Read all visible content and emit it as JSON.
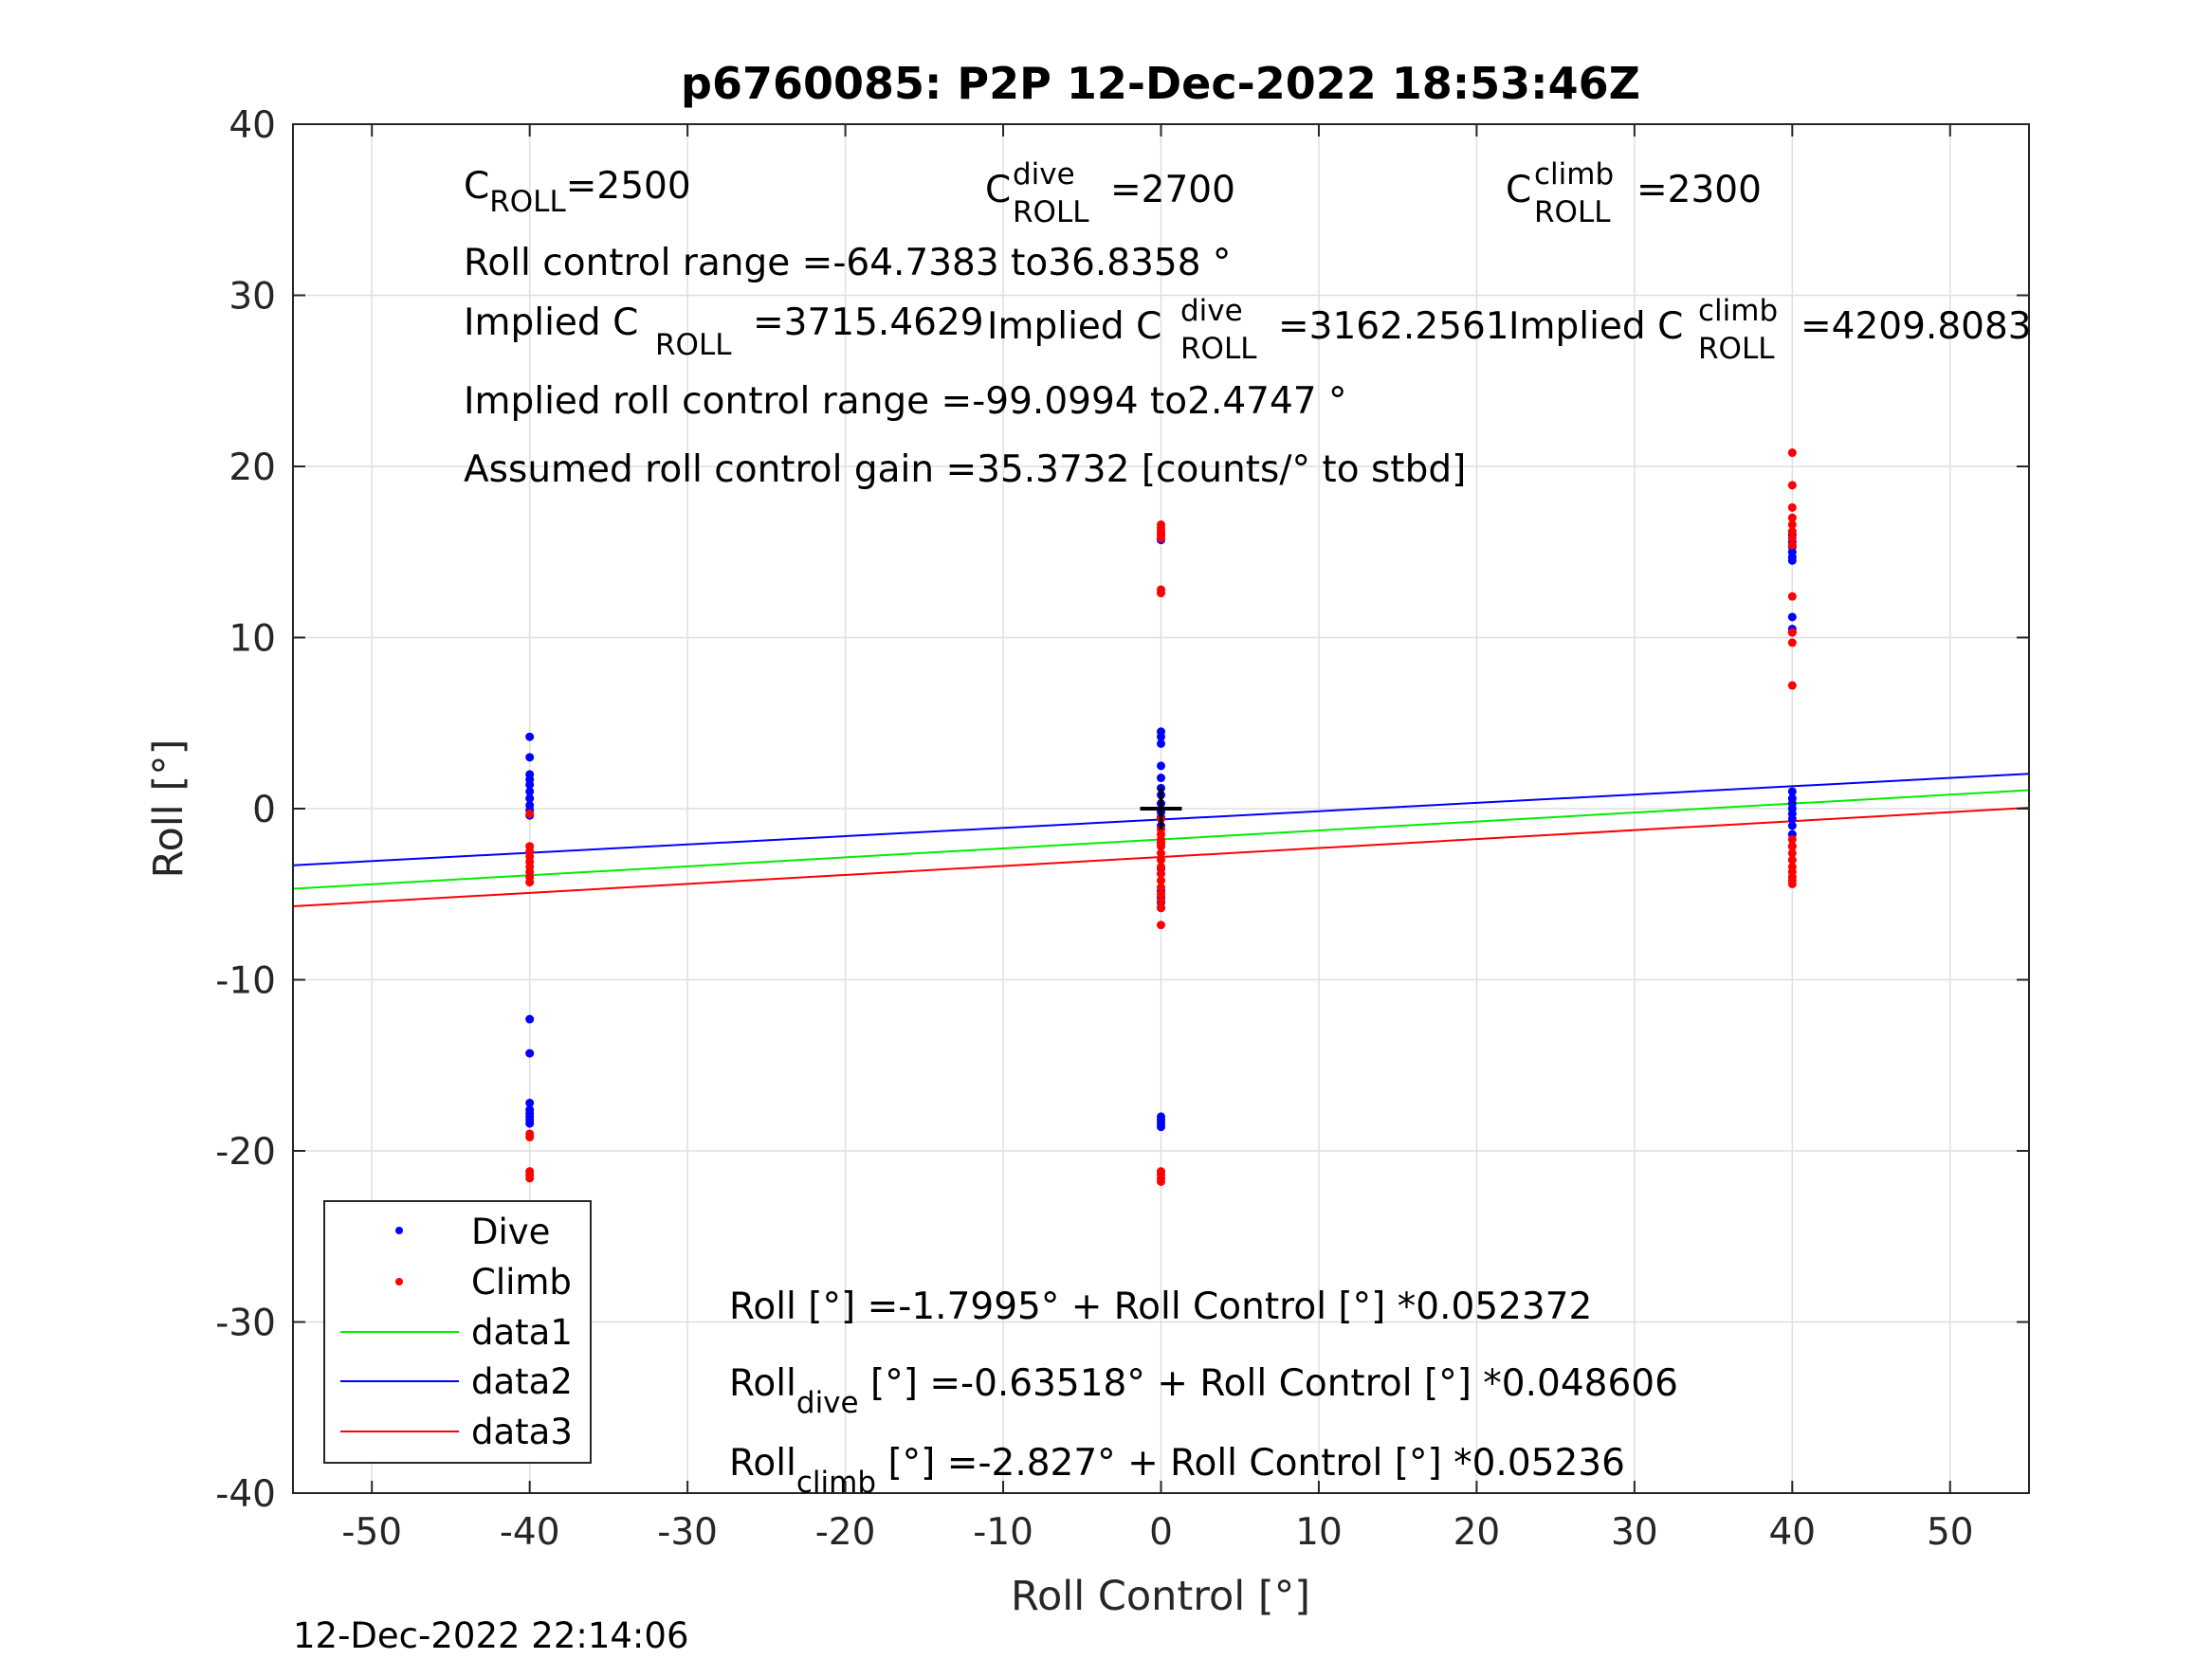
{
  "chart_data": {
    "type": "scatter",
    "title": "p6760085: P2P 12-Dec-2022 18:53:46Z",
    "xlabel": "Roll Control [°]",
    "ylabel": "Roll [°]",
    "xlim": [
      -55,
      55
    ],
    "ylim": [
      -40,
      40
    ],
    "xticks": [
      -50,
      -40,
      -30,
      -20,
      -10,
      0,
      10,
      20,
      30,
      40,
      50
    ],
    "yticks": [
      -40,
      -30,
      -20,
      -10,
      0,
      10,
      20,
      30,
      40
    ],
    "grid": true,
    "legend_position": "bottom-left",
    "series": [
      {
        "name": "Dive",
        "kind": "points",
        "color": "#0000ff",
        "x": [
          -40,
          -40,
          -40,
          -40,
          -40,
          -40,
          -40,
          -40,
          -40,
          -40,
          -40,
          -40,
          -40,
          -40,
          -40,
          -40,
          -40,
          -40,
          0,
          0,
          0,
          0,
          0,
          0,
          0,
          0,
          0,
          0,
          0,
          0,
          0,
          0,
          0,
          0,
          0,
          0,
          0,
          0,
          0,
          0,
          0,
          40,
          40,
          40,
          40,
          40,
          40,
          40,
          40,
          40,
          40,
          40,
          40,
          40,
          40,
          40,
          40,
          40,
          40
        ],
        "y": [
          4.2,
          3.0,
          2.0,
          1.7,
          1.4,
          1.0,
          0.6,
          0.2,
          -0.1,
          -0.4,
          -12.3,
          -14.3,
          -17.2,
          -17.6,
          -17.8,
          -18.0,
          -18.2,
          -18.4,
          4.5,
          4.2,
          3.8,
          2.5,
          1.8,
          1.2,
          0.8,
          0.3,
          -0.2,
          -0.5,
          -1.0,
          -2.0,
          -3.5,
          -4.8,
          -5.2,
          -5.5,
          -5.8,
          -18.0,
          -18.2,
          -18.4,
          -18.6,
          16.0,
          15.7,
          16.0,
          15.6,
          15.3,
          15.0,
          14.7,
          14.5,
          11.2,
          10.5,
          10.3,
          1.0,
          0.6,
          0.3,
          0.0,
          -0.3,
          -0.6,
          -1.0,
          -1.5,
          -2.2
        ]
      },
      {
        "name": "Climb",
        "kind": "points",
        "color": "#ff0000",
        "x": [
          -40,
          -40,
          -40,
          -40,
          -40,
          -40,
          -40,
          -40,
          -40,
          -40,
          -40,
          -40,
          -40,
          -40,
          0,
          0,
          0,
          0,
          0,
          0,
          0,
          0,
          0,
          0,
          0,
          0,
          0,
          0,
          0,
          0,
          0,
          0,
          0,
          0,
          0,
          0,
          0,
          0,
          0,
          0,
          0,
          40,
          40,
          40,
          40,
          40,
          40,
          40,
          40,
          40,
          40,
          40,
          40,
          40,
          40,
          40,
          40,
          40,
          40,
          40,
          40,
          40
        ],
        "y": [
          -2.2,
          -2.5,
          -2.8,
          -3.1,
          -3.4,
          -3.7,
          -4.0,
          -4.3,
          -19.0,
          -19.2,
          -21.2,
          -21.4,
          -21.6,
          -0.3,
          16.6,
          16.4,
          16.2,
          16.0,
          15.8,
          12.8,
          12.6,
          -0.6,
          -1.2,
          -1.8,
          -2.2,
          -2.6,
          -3.0,
          -3.4,
          -3.8,
          -4.2,
          -4.6,
          -5.0,
          -5.4,
          -5.8,
          -6.8,
          -21.2,
          -21.4,
          -21.6,
          -21.8,
          -2.0,
          -1.5,
          20.8,
          18.9,
          17.6,
          17.0,
          16.6,
          16.2,
          15.8,
          15.4,
          12.4,
          10.3,
          9.7,
          7.2,
          -1.8,
          -2.2,
          -2.6,
          -3.0,
          -3.4,
          -3.7,
          -4.0,
          -4.2,
          -4.4
        ]
      },
      {
        "name": "data1",
        "kind": "line",
        "color": "#00ee00",
        "intercept": -1.7995,
        "slope": 0.052372
      },
      {
        "name": "data2",
        "kind": "line",
        "color": "#0000ff",
        "intercept": -0.63518,
        "slope": 0.048606
      },
      {
        "name": "data3",
        "kind": "line",
        "color": "#ff0000",
        "intercept": -2.827,
        "slope": 0.05236
      }
    ],
    "center_marker": {
      "x": 0,
      "y": 0,
      "symbol": "+"
    },
    "annotations": {
      "c_roll": {
        "base": "C",
        "sub": "ROLL",
        "value": "=2500"
      },
      "c_roll_dive": {
        "base": "C",
        "sup": "dive",
        "sub": "ROLL",
        "value": "=2700"
      },
      "c_roll_climb": {
        "base": "C",
        "sup": "climb",
        "sub": "ROLL",
        "value": "=2300"
      },
      "roll_control_range": "Roll control range =-64.7383 to36.8358 °",
      "implied_c_roll": {
        "prefix": "Implied C",
        "sub": "ROLL",
        "value": "=3715.4629"
      },
      "implied_c_roll_dive": {
        "prefix": "Implied C",
        "sup": "dive",
        "sub": "ROLL",
        "value": "=3162.2561"
      },
      "implied_c_roll_climb": {
        "prefix": "Implied C",
        "sup": "climb",
        "sub": "ROLL",
        "value": "=4209.8083"
      },
      "implied_range": "Implied roll control range =-99.0994 to2.4747 °",
      "assumed_gain": "Assumed roll control gain =35.3732 [counts/° to stbd]",
      "fit_all": "Roll [°] =-1.7995° + Roll Control [°] *0.052372",
      "fit_dive": {
        "base": "Roll",
        "sub": "dive",
        "rest": " [°] =-0.63518° + Roll Control [°] *0.048606"
      },
      "fit_climb": {
        "base": "Roll",
        "sub": "climb",
        "rest": " [°] =-2.827° + Roll Control [°] *0.05236"
      }
    },
    "timestamp": "12-Dec-2022 22:14:06"
  }
}
